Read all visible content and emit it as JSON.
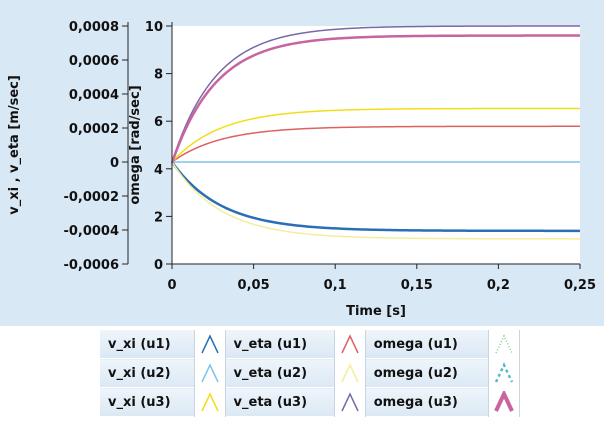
{
  "chart_data": {
    "type": "line",
    "xlabel": "Time [s]",
    "ylabel_left": "v_xi , v_eta  [m/sec]",
    "ylabel_right": "omega  [rad/sec]",
    "x_ticks": [
      "0",
      "0,05",
      "0,1",
      "0,15",
      "0,2",
      "0,25"
    ],
    "x_tick_values": [
      0,
      0.05,
      0.1,
      0.15,
      0.2,
      0.25
    ],
    "xlim": [
      0,
      0.25
    ],
    "left_y_ticks": [
      "0,0008",
      "0,0006",
      "0,0004",
      "0,0002",
      "0",
      "-0,0002",
      "-0,0004",
      "-0,0006"
    ],
    "left_y_tick_values": [
      0.0008,
      0.0006,
      0.0004,
      0.0002,
      0,
      -0.0002,
      -0.0004,
      -0.0006
    ],
    "left_ylim": [
      -0.0006,
      0.0008
    ],
    "right_y_ticks": [
      "10",
      "8",
      "6",
      "4",
      "2",
      "0"
    ],
    "right_y_tick_values": [
      10,
      8,
      6,
      4,
      2,
      0
    ],
    "right_ylim": [
      0,
      10
    ],
    "grid": false,
    "legend_position": "bottom",
    "series": [
      {
        "name": "v_xi (u1)",
        "axis": "left",
        "color": "#2a6fb5",
        "style": "solid",
        "width": 2.5,
        "y0": 0,
        "final": -0.000405,
        "tau": 0.03
      },
      {
        "name": "v_eta (u1)",
        "axis": "left",
        "color": "#e06060",
        "style": "solid",
        "width": 1.5,
        "y0": 0,
        "final": 0.00021,
        "tau": 0.03
      },
      {
        "name": "omega (u1)",
        "axis": "right",
        "color": "#8cc88c",
        "style": "dashed",
        "width": 1.5,
        "y0": 4.25,
        "final": 9.6,
        "tau": 0.027
      },
      {
        "name": "v_xi (u2)",
        "axis": "left",
        "color": "#7fc3e8",
        "style": "solid",
        "width": 1.5,
        "y0": 0,
        "final": 0,
        "tau": 0.03
      },
      {
        "name": "v_eta (u2)",
        "axis": "left",
        "color": "#f4ee9c",
        "style": "solid",
        "width": 1.5,
        "y0": 0,
        "final": -0.000452,
        "tau": 0.03
      },
      {
        "name": "omega (u2)",
        "axis": "right",
        "color": "#5ab8c8",
        "style": "dashed",
        "width": 2,
        "y0": 4.25,
        "final": 9.6,
        "tau": 0.027
      },
      {
        "name": "v_xi (u3)",
        "axis": "left",
        "color": "#f2de18",
        "style": "solid",
        "width": 1.5,
        "y0": 0,
        "final": 0.000315,
        "tau": 0.03
      },
      {
        "name": "v_eta (u3)",
        "axis": "left",
        "color": "#7a68a8",
        "style": "solid",
        "width": 1.5,
        "y0": 0,
        "final": 0.0008,
        "tau": 0.027
      },
      {
        "name": "omega (u3)",
        "axis": "right",
        "color": "#c864a0",
        "style": "solid",
        "width": 2.5,
        "y0": 4.25,
        "final": 9.6,
        "tau": 0.027
      }
    ]
  },
  "legend": {
    "rows": [
      [
        {
          "label": "v_xi (u1)",
          "color": "#2a6fb5",
          "style": "solid"
        },
        {
          "label": "v_eta (u1)",
          "color": "#e06060",
          "style": "solid"
        },
        {
          "label": "omega (u1)",
          "color": "#8cc88c",
          "style": "dotted"
        }
      ],
      [
        {
          "label": "v_xi (u2)",
          "color": "#7fc3e8",
          "style": "solid"
        },
        {
          "label": "v_eta (u2)",
          "color": "#f4ee9c",
          "style": "solid"
        },
        {
          "label": "omega (u2)",
          "color": "#5ab8c8",
          "style": "dashed"
        }
      ],
      [
        {
          "label": "v_xi (u3)",
          "color": "#f2de18",
          "style": "solid"
        },
        {
          "label": "v_eta (u3)",
          "color": "#7a68a8",
          "style": "solid"
        },
        {
          "label": "omega (u3)",
          "color": "#c864a0",
          "style": "thick"
        }
      ]
    ]
  }
}
